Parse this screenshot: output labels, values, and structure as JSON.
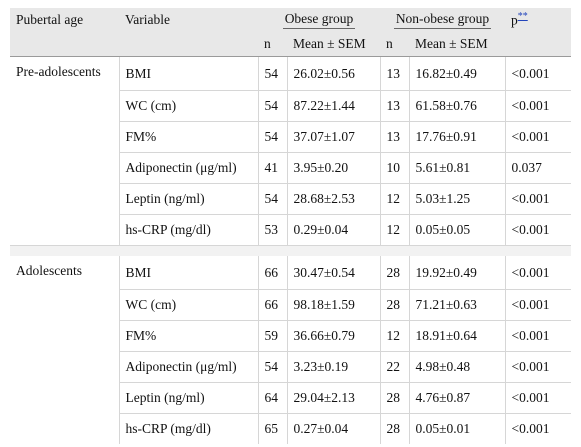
{
  "headers": {
    "pubertal_age": "Pubertal age",
    "variable": "Variable",
    "obese_group": "Obese group",
    "non_obese_group": "Non-obese group",
    "p": "p",
    "p_ref": "**",
    "n": "n",
    "mean_sem": "Mean ± SEM"
  },
  "groups": [
    {
      "label": "Pre-adolescents",
      "rows": [
        {
          "variable": "BMI",
          "obese_n": "54",
          "obese_mean": "26.02±0.56",
          "non_n": "13",
          "non_mean": "16.82±0.49",
          "p": "<0.001"
        },
        {
          "variable": "WC (cm)",
          "obese_n": "54",
          "obese_mean": "87.22±1.44",
          "non_n": "13",
          "non_mean": "61.58±0.76",
          "p": "<0.001"
        },
        {
          "variable": "FM%",
          "obese_n": "54",
          "obese_mean": "37.07±1.07",
          "non_n": "13",
          "non_mean": "17.76±0.91",
          "p": "<0.001"
        },
        {
          "variable": "Adiponectin (μg/ml)",
          "obese_n": "41",
          "obese_mean": "3.95±0.20",
          "non_n": "10",
          "non_mean": "5.61±0.81",
          "p": "0.037"
        },
        {
          "variable": "Leptin (ng/ml)",
          "obese_n": "54",
          "obese_mean": "28.68±2.53",
          "non_n": "12",
          "non_mean": "5.03±1.25",
          "p": "<0.001"
        },
        {
          "variable": "hs-CRP (mg/dl)",
          "obese_n": "53",
          "obese_mean": "0.29±0.04",
          "non_n": "12",
          "non_mean": "0.05±0.05",
          "p": "<0.001"
        }
      ]
    },
    {
      "label": "Adolescents",
      "rows": [
        {
          "variable": "BMI",
          "obese_n": "66",
          "obese_mean": "30.47±0.54",
          "non_n": "28",
          "non_mean": "19.92±0.49",
          "p": "<0.001"
        },
        {
          "variable": "WC (cm)",
          "obese_n": "66",
          "obese_mean": "98.18±1.59",
          "non_n": "28",
          "non_mean": "71.21±0.63",
          "p": "<0.001"
        },
        {
          "variable": "FM%",
          "obese_n": "59",
          "obese_mean": "36.66±0.79",
          "non_n": "12",
          "non_mean": "18.91±0.64",
          "p": "<0.001"
        },
        {
          "variable": "Adiponectin (μg/ml)",
          "obese_n": "54",
          "obese_mean": "3.23±0.19",
          "non_n": "22",
          "non_mean": "4.98±0.48",
          "p": "<0.001"
        },
        {
          "variable": "Leptin (ng/ml)",
          "obese_n": "64",
          "obese_mean": "29.04±2.13",
          "non_n": "28",
          "non_mean": "4.76±0.87",
          "p": "<0.001"
        },
        {
          "variable": "hs-CRP (mg/dl)",
          "obese_n": "65",
          "obese_mean": "0.27±0.04",
          "non_n": "28",
          "non_mean": "0.05±0.01",
          "p": "<0.001"
        }
      ]
    }
  ]
}
